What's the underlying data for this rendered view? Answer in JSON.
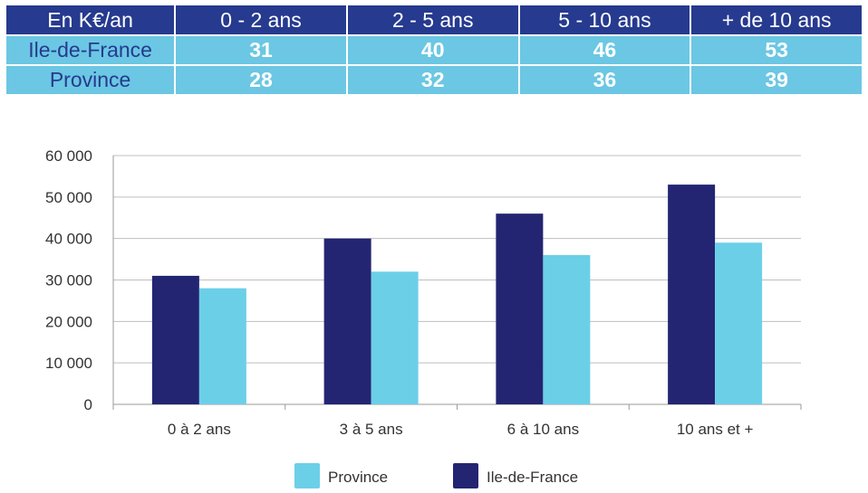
{
  "table": {
    "header": [
      "En K€/an",
      "0 - 2 ans",
      "2 - 5 ans",
      "5 - 10 ans",
      "+ de 10 ans"
    ],
    "rows": [
      {
        "label": "Ile-de-France",
        "values": [
          "31",
          "40",
          "46",
          "53"
        ]
      },
      {
        "label": "Province",
        "values": [
          "28",
          "32",
          "36",
          "39"
        ]
      }
    ]
  },
  "colors": {
    "header_bg": "#263a8f",
    "row_bg": "#6bc7e3",
    "ile_de_france": "#232572",
    "province": "#6ccfe8"
  },
  "chart_data": {
    "type": "bar",
    "categories": [
      "0 à 2 ans",
      "3 à 5 ans",
      "6 à 10 ans",
      "10 ans et +"
    ],
    "series": [
      {
        "name": "Ile-de-France",
        "values": [
          31000,
          40000,
          46000,
          53000
        ],
        "color": "#232572"
      },
      {
        "name": "Province",
        "values": [
          28000,
          32000,
          36000,
          39000
        ],
        "color": "#6ccfe8"
      }
    ],
    "yticks": [
      "0",
      "10 000",
      "20 000",
      "30 000",
      "40 000",
      "50 000",
      "60 000"
    ],
    "ylim": [
      0,
      60000
    ],
    "grid": true,
    "legend": {
      "position": "bottom",
      "items": [
        {
          "label": "Province",
          "color": "#6ccfe8"
        },
        {
          "label": "Ile-de-France",
          "color": "#232572"
        }
      ]
    }
  }
}
